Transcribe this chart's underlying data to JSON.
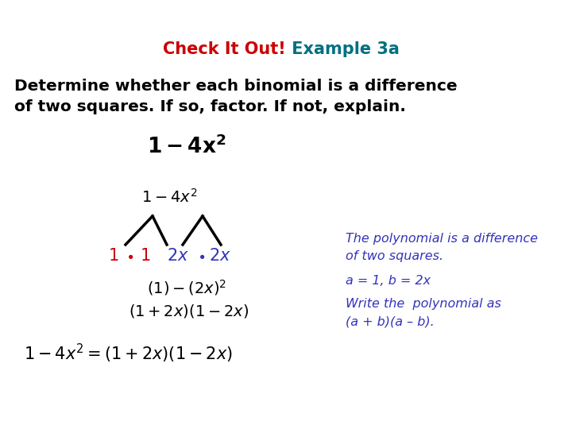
{
  "title_check": "Check It Out!",
  "title_example": " Example 3a",
  "title_check_color": "#CC0000",
  "title_example_color": "#007080",
  "title_fontsize": 15,
  "body_text_line1": "Determine whether each binomial is a difference",
  "body_text_line2": "of two squares. If so, factor. If not, explain.",
  "body_fontsize": 14.5,
  "body_color": "#000000",
  "black_color": "#000000",
  "red_color": "#CC0000",
  "blue_color": "#3333BB",
  "bg_color": "#FFFFFF",
  "note_line1": "The polynomial is a difference",
  "note_line2": "of two squares.",
  "note_line3": "a = 1, b = 2x",
  "note_line4": "Write the  polynomial as",
  "note_line5": "(a + b)(a – b).",
  "note_color": "#3333BB",
  "note_fontsize": 11.5
}
